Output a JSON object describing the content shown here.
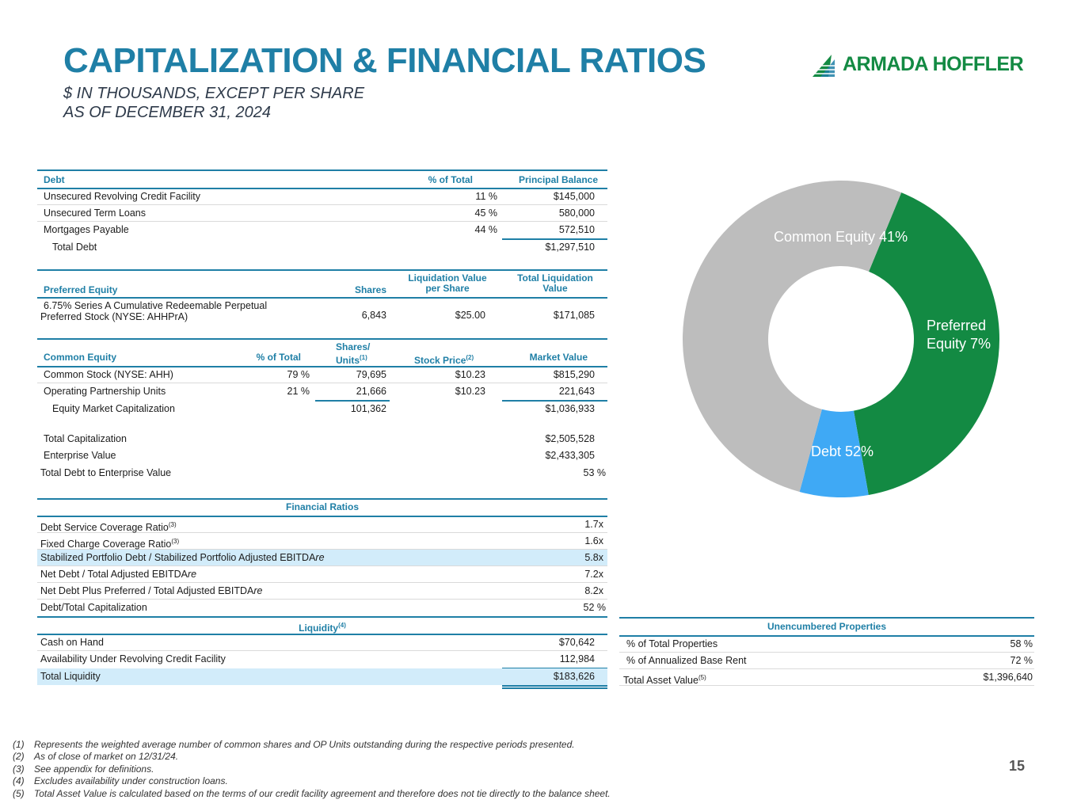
{
  "header": {
    "title": "CAPITALIZATION & FINANCIAL RATIOS",
    "subtitle_1": "$ IN THOUSANDS, EXCEPT PER SHARE",
    "subtitle_2": "AS OF DECEMBER 31, 2024",
    "logo_text": "ARMADA HOFFLER"
  },
  "debt": {
    "headers": {
      "name": "Debt",
      "pct": "% of Total",
      "balance": "Principal Balance"
    },
    "rows": [
      {
        "name": "Unsecured Revolving Credit Facility",
        "pct": "11 %",
        "balance": "$145,000"
      },
      {
        "name": "Unsecured Term Loans",
        "pct": "45 %",
        "balance": "580,000"
      },
      {
        "name": "Mortgages Payable",
        "pct": "44 %",
        "balance": "572,510"
      }
    ],
    "total": {
      "name": "Total Debt",
      "balance": "$1,297,510"
    }
  },
  "preferred": {
    "headers": {
      "name": "Preferred Equity",
      "shares": "Shares",
      "liq_value": "Liquidation Value per Share",
      "total_liq": "Total Liquidation Value"
    },
    "row": {
      "name_line1": "6.75% Series A Cumulative Redeemable Perpetual",
      "name_line2": "Preferred Stock (NYSE: AHHPrA)",
      "shares": "6,843",
      "liq_value": "$25.00",
      "total_liq": "$171,085"
    }
  },
  "common": {
    "headers": {
      "name": "Common Equity",
      "pct": "% of Total",
      "shares_line1": "Shares/",
      "shares_line2": "Units",
      "shares_note": "(1)",
      "price": "Stock Price",
      "price_note": "(2)",
      "market": "Market Value"
    },
    "rows": [
      {
        "name": "Common Stock (NYSE: AHH)",
        "pct": "79 %",
        "shares": "79,695",
        "price": "$10.23",
        "market": "$815,290"
      },
      {
        "name": "Operating Partnership Units",
        "pct": "21 %",
        "shares": "21,666",
        "price": "$10.23",
        "market": "221,643"
      }
    ],
    "total": {
      "name": "Equity Market Capitalization",
      "shares": "101,362",
      "market": "$1,036,933"
    }
  },
  "summary": [
    {
      "name": "Total Capitalization",
      "value": "$2,505,528"
    },
    {
      "name": "Enterprise Value",
      "value": "$2,433,305"
    },
    {
      "name": "Total Debt to Enterprise Value",
      "value": "53 %"
    }
  ],
  "ratios": {
    "title": "Financial Ratios",
    "rows": [
      {
        "name": "Debt Service Coverage Ratio",
        "note": "(3)",
        "value": "1.7x"
      },
      {
        "name": "Fixed Charge Coverage Ratio",
        "note": "(3)",
        "value": "1.6x"
      },
      {
        "name": "Stabilized Portfolio Debt / Stabilized Portfolio Adjusted EBITDA",
        "suffix": "re",
        "value": "5.8x"
      },
      {
        "name": "Net Debt / Total Adjusted EBITDA",
        "suffix": "re",
        "value": "7.2x"
      },
      {
        "name": "Net Debt Plus Preferred / Total Adjusted EBITDA",
        "suffix": "re",
        "value": "8.2x"
      },
      {
        "name": "Debt/Total Capitalization",
        "value": "52 %"
      }
    ]
  },
  "liquidity": {
    "title": "Liquidity",
    "title_note": "(4)",
    "rows": [
      {
        "name": "Cash on Hand",
        "value": "$70,642"
      },
      {
        "name": "Availability Under Revolving Credit Facility",
        "value": "112,984"
      }
    ],
    "total": {
      "name": "Total Liquidity",
      "value": "$183,626"
    }
  },
  "unencumbered": {
    "title": "Unencumbered Properties",
    "rows": [
      {
        "name": "% of Total Properties",
        "value": "58 %"
      },
      {
        "name": "% of Annualized Base Rent",
        "value": "72 %"
      },
      {
        "name": "Total Asset Value",
        "note": "(5)",
        "value": "$1,396,640"
      }
    ]
  },
  "chart_data": {
    "type": "pie",
    "variant": "donut",
    "slices": [
      {
        "label": "Common Equity",
        "value": 41,
        "color": "#138a43"
      },
      {
        "label": "Preferred Equity",
        "value": 7,
        "color": "#3fa9f5"
      },
      {
        "label": "Debt",
        "value": 52,
        "color": "#bdbdbd"
      }
    ],
    "labels": {
      "common": "Common Equity 41%",
      "preferred_line1": "Preferred",
      "preferred_line2": "Equity  7%",
      "debt": "Debt 52%"
    }
  },
  "footnotes": [
    {
      "num": "(1)",
      "text": "Represents the weighted average number of common shares and OP Units outstanding during the respective periods presented."
    },
    {
      "num": "(2)",
      "text": "As of close of market on 12/31/24."
    },
    {
      "num": "(3)",
      "text": "See appendix for definitions."
    },
    {
      "num": "(4)",
      "text": "Excludes availability under construction loans."
    },
    {
      "num": "(5)",
      "text": "Total Asset Value is calculated based on the terms of our credit facility agreement and therefore does not tie directly to the balance sheet."
    }
  ],
  "page_number": "15"
}
